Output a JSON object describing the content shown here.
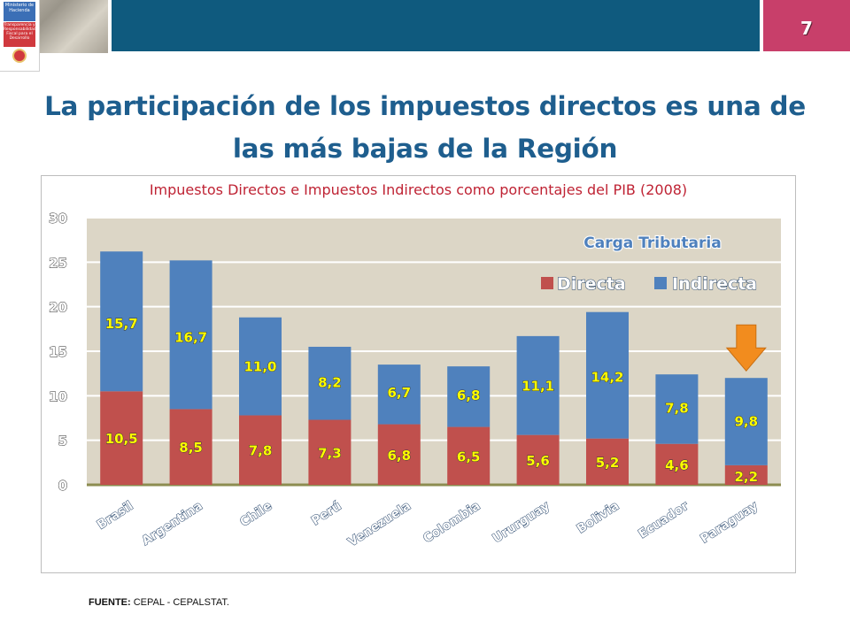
{
  "header": {
    "page_number": "7",
    "logo_top": "Ministerio de Hacienda",
    "logo_mid": "Transparencia y Responsabilidad Fiscal para el Desarrollo"
  },
  "slide": {
    "title": "La participación de los impuestos directos es una de las más bajas de la Región"
  },
  "footer": {
    "source_label": "FUENTE:",
    "source_text": "CEPAL - CEPALSTAT."
  },
  "colors": {
    "directa": "#c0504d",
    "indirecta": "#4f81bd",
    "plot_bg": "#dcd6c6",
    "axis": "#8c8c50",
    "label_text": "#ffff00",
    "arrow": "#f28c1e"
  },
  "chart_data": {
    "type": "bar",
    "stacked": true,
    "title": "Impuestos Directos e Impuestos Indirectos como porcentajes del PIB (2008)",
    "legend_title": "Carga Tributaria",
    "legend_position": "top-right",
    "categories": [
      "Brasil",
      "Argentina",
      "Chile",
      "Perú",
      "Venezuela",
      "Colombia",
      "Ururguay",
      "Bolivia",
      "Ecuador",
      "Paraguay"
    ],
    "series": [
      {
        "name": "Directa",
        "values": [
          10.5,
          8.5,
          7.8,
          7.3,
          6.8,
          6.5,
          5.6,
          5.2,
          4.6,
          2.2
        ],
        "labels": [
          "10,5",
          "8,5",
          "7,8",
          "7,3",
          "6,8",
          "6,5",
          "5,6",
          "5,2",
          "4,6",
          "2,2"
        ]
      },
      {
        "name": "Indirecta",
        "values": [
          15.7,
          16.7,
          11.0,
          8.2,
          6.7,
          6.8,
          11.1,
          14.2,
          7.8,
          9.8
        ],
        "labels": [
          "15,7",
          "16,7",
          "11,0",
          "8,2",
          "6,7",
          "6,8",
          "11,1",
          "14,2",
          "7,8",
          "9,8"
        ]
      }
    ],
    "ylim": [
      0,
      30
    ],
    "yticks": [
      "0",
      "5",
      "10",
      "15",
      "20",
      "25",
      "30"
    ],
    "grid": true,
    "highlight": "Paraguay"
  }
}
